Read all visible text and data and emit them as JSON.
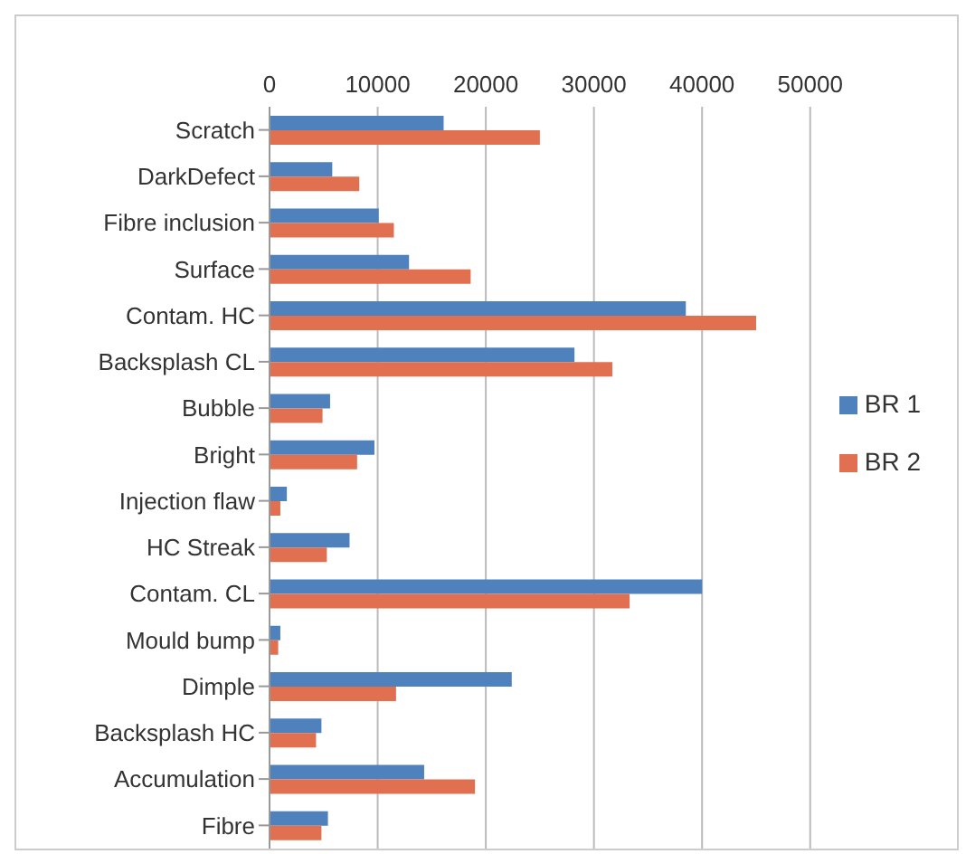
{
  "chart_data": {
    "type": "bar",
    "orientation": "horizontal",
    "categories": [
      "Scratch",
      "DarkDefect",
      "Fibre inclusion",
      "Surface",
      "Contam. HC",
      "Backsplash CL",
      "Bubble",
      "Bright",
      "Injection flaw",
      "HC Streak",
      "Contam. CL",
      "Mould bump",
      "Dimple",
      "Backsplash HC",
      "Accumulation",
      "Fibre"
    ],
    "series": [
      {
        "name": "BR 1",
        "color": "#4f81bd",
        "values": [
          16100,
          5800,
          10100,
          12900,
          38500,
          28200,
          5600,
          9700,
          1600,
          7400,
          40000,
          1000,
          22400,
          4800,
          14300,
          5400
        ]
      },
      {
        "name": "BR 2",
        "color": "#e0704f",
        "values": [
          25000,
          8300,
          11500,
          18600,
          45000,
          31700,
          4900,
          8100,
          1000,
          5300,
          33300,
          800,
          11700,
          4300,
          19000,
          4800
        ]
      }
    ],
    "xlim": [
      0,
      50000
    ],
    "xticks": [
      0,
      10000,
      20000,
      30000,
      40000,
      50000
    ],
    "grid": "x",
    "legend": "right"
  }
}
